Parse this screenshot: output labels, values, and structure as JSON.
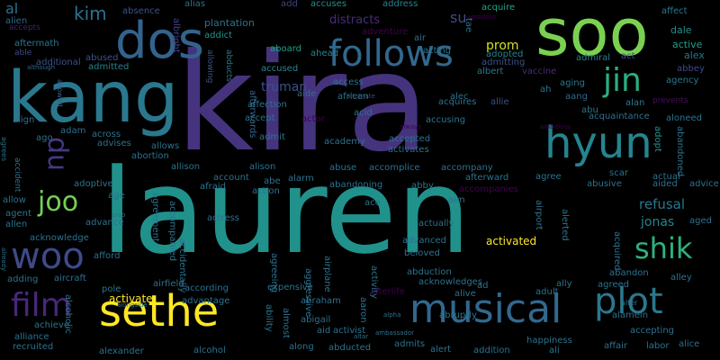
{
  "words": [
    {
      "text": "kira",
      "color": "#46337e"
    },
    {
      "text": "lauren",
      "color": "#21918c"
    },
    {
      "text": "kang",
      "color": "#2a788e"
    },
    {
      "text": "soo",
      "color": "#7ad151"
    },
    {
      "text": "dos",
      "color": "#33638d"
    },
    {
      "text": "sethe",
      "color": "#fde725"
    },
    {
      "text": "musical",
      "color": "#31688e"
    },
    {
      "text": "hyun",
      "color": "#25858e"
    },
    {
      "text": "plot",
      "color": "#2a788e"
    },
    {
      "text": "follows",
      "color": "#31688e"
    },
    {
      "text": "woo",
      "color": "#3e4a89"
    },
    {
      "text": "film",
      "color": "#482878"
    },
    {
      "text": "jin",
      "color": "#29af7f"
    },
    {
      "text": "shik",
      "color": "#2db27d"
    },
    {
      "text": "joo",
      "color": "#75d054"
    },
    {
      "text": "du",
      "color": "#443983"
    },
    {
      "text": "kim",
      "color": "#2c728e"
    },
    {
      "text": "su",
      "color": "#3e4a89"
    },
    {
      "text": "prom",
      "color": "#d2e21b"
    },
    {
      "text": "distracts",
      "color": "#472c7a"
    },
    {
      "text": "refusal",
      "color": "#2a788e"
    },
    {
      "text": "jonas",
      "color": "#25848e"
    },
    {
      "text": "truman",
      "color": "#3b528b"
    },
    {
      "text": "al",
      "color": "#2c728e"
    },
    {
      "text": "alien",
      "color": "#31688e"
    },
    {
      "text": "accepts",
      "color": "#482071"
    },
    {
      "text": "aftermath",
      "color": "#2a788e"
    },
    {
      "text": "able",
      "color": "#3e4a89"
    },
    {
      "text": "additional",
      "color": "#3b528b"
    },
    {
      "text": "absence",
      "color": "#3b528b"
    },
    {
      "text": "alias",
      "color": "#2c728e"
    },
    {
      "text": "afterwards",
      "color": "#33638d"
    },
    {
      "text": "add",
      "color": "#414487"
    },
    {
      "text": "accuses",
      "color": "#21918c"
    },
    {
      "text": "address",
      "color": "#26828e"
    },
    {
      "text": "acquire",
      "color": "#20a386"
    },
    {
      "text": "affect",
      "color": "#287c8e"
    },
    {
      "text": "ambition",
      "color": "#440154"
    },
    {
      "text": "dale",
      "color": "#21918c"
    },
    {
      "text": "active",
      "color": "#1f9e89"
    },
    {
      "text": "alex",
      "color": "#2c728e"
    },
    {
      "text": "abbey",
      "color": "#3e4a89"
    },
    {
      "text": "agency",
      "color": "#2a788e"
    },
    {
      "text": "plantation",
      "color": "#2c728e"
    },
    {
      "text": "addict",
      "color": "#21918c"
    },
    {
      "text": "abused",
      "color": "#3b528b"
    },
    {
      "text": "albright",
      "color": "#404387"
    },
    {
      "text": "admitted",
      "color": "#26828e"
    },
    {
      "text": "allowed",
      "color": "#33638d"
    },
    {
      "text": "although",
      "color": "#31688e"
    },
    {
      "text": "allowing",
      "color": "#3b528b"
    },
    {
      "text": "abducts",
      "color": "#2a788e"
    },
    {
      "text": "aboard",
      "color": "#1fa187"
    },
    {
      "text": "accused",
      "color": "#25858e"
    },
    {
      "text": "adventure",
      "color": "#440154"
    },
    {
      "text": "ahead",
      "color": "#24878e"
    },
    {
      "text": "air",
      "color": "#2c728e"
    },
    {
      "text": "acting",
      "color": "#2a788e"
    },
    {
      "text": "adopted",
      "color": "#25858e"
    },
    {
      "text": "tae",
      "color": "#2c728e"
    },
    {
      "text": "admitting",
      "color": "#3b528b"
    },
    {
      "text": "admiral",
      "color": "#26828e"
    },
    {
      "text": "act",
      "color": "#3b528b"
    },
    {
      "text": "vaccine",
      "color": "#472c7a"
    },
    {
      "text": "albert",
      "color": "#2a788e"
    },
    {
      "text": "aging",
      "color": "#2a788e"
    },
    {
      "text": "ah",
      "color": "#2c728e"
    },
    {
      "text": "aang",
      "color": "#31688e"
    },
    {
      "text": "alan",
      "color": "#2a788e"
    },
    {
      "text": "abu",
      "color": "#2c728e"
    },
    {
      "text": "prevents",
      "color": "#471063"
    },
    {
      "text": "acquaintance",
      "color": "#2c728e"
    },
    {
      "text": "aloneed",
      "color": "#2c728e"
    },
    {
      "text": "adopt",
      "color": "#21918c"
    },
    {
      "text": "abandoned",
      "color": "#2c728e"
    },
    {
      "text": "ambitious",
      "color": "#440154"
    },
    {
      "text": "aide",
      "color": "#2c728e"
    },
    {
      "text": "alternate",
      "color": "#404387"
    },
    {
      "text": "alec",
      "color": "#2c728e"
    },
    {
      "text": "allie",
      "color": "#3b528b"
    },
    {
      "text": "access",
      "color": "#2c728e"
    },
    {
      "text": "african",
      "color": "#2c728e"
    },
    {
      "text": "affection",
      "color": "#2c728e"
    },
    {
      "text": "accept",
      "color": "#2c728e"
    },
    {
      "text": "acid",
      "color": "#2c728e"
    },
    {
      "text": "actor",
      "color": "#440154"
    },
    {
      "text": "acquires",
      "color": "#2c728e"
    },
    {
      "text": "accusing",
      "color": "#2c728e"
    },
    {
      "text": "always",
      "color": "#440154"
    },
    {
      "text": "admit",
      "color": "#2c728e"
    },
    {
      "text": "academy",
      "color": "#2c728e"
    },
    {
      "text": "accepted",
      "color": "#2c728e"
    },
    {
      "text": "activates",
      "color": "#2c728e"
    },
    {
      "text": "accompany",
      "color": "#2c728e"
    },
    {
      "text": "align",
      "color": "#2c728e"
    },
    {
      "text": "ago",
      "color": "#2c728e"
    },
    {
      "text": "adam",
      "color": "#2c728e"
    },
    {
      "text": "across",
      "color": "#2c728e"
    },
    {
      "text": "advises",
      "color": "#2c728e"
    },
    {
      "text": "allows",
      "color": "#2c728e"
    },
    {
      "text": "abortion",
      "color": "#2c728e"
    },
    {
      "text": "agrees",
      "color": "#2c728e"
    },
    {
      "text": "accident",
      "color": "#2c728e"
    },
    {
      "text": "adoptive",
      "color": "#2c728e"
    },
    {
      "text": "allison",
      "color": "#2c728e"
    },
    {
      "text": "alison",
      "color": "#2c728e"
    },
    {
      "text": "abuse",
      "color": "#2c728e"
    },
    {
      "text": "accomplice",
      "color": "#2c728e"
    },
    {
      "text": "afterward",
      "color": "#2c728e"
    },
    {
      "text": "agree",
      "color": "#2c728e"
    },
    {
      "text": "actual",
      "color": "#2c728e"
    },
    {
      "text": "scar",
      "color": "#2c728e"
    },
    {
      "text": "aided",
      "color": "#2c728e"
    },
    {
      "text": "advice",
      "color": "#2c728e"
    },
    {
      "text": "abusive",
      "color": "#2c728e"
    },
    {
      "text": "account",
      "color": "#2c728e"
    },
    {
      "text": "abe",
      "color": "#2c728e"
    },
    {
      "text": "alarm",
      "color": "#2c728e"
    },
    {
      "text": "abandoning",
      "color": "#2c728e"
    },
    {
      "text": "abby",
      "color": "#2c728e"
    },
    {
      "text": "accompanies",
      "color": "#440154"
    },
    {
      "text": "age",
      "color": "#2c728e"
    },
    {
      "text": "afraid",
      "color": "#2c728e"
    },
    {
      "text": "action",
      "color": "#2c728e"
    },
    {
      "text": "agreement",
      "color": "#2c728e"
    },
    {
      "text": "accompanied",
      "color": "#2c728e"
    },
    {
      "text": "allow",
      "color": "#2c728e"
    },
    {
      "text": "allen",
      "color": "#2c728e"
    },
    {
      "text": "agent",
      "color": "#2c728e"
    },
    {
      "text": "also",
      "color": "#2c728e"
    },
    {
      "text": "advance",
      "color": "#2c728e"
    },
    {
      "text": "actress",
      "color": "#2c728e"
    },
    {
      "text": "ace",
      "color": "#2c728e"
    },
    {
      "text": "aim",
      "color": "#2c728e"
    },
    {
      "text": "actually",
      "color": "#2c728e"
    },
    {
      "text": "airport",
      "color": "#2c728e"
    },
    {
      "text": "alerted",
      "color": "#2c728e"
    },
    {
      "text": "aged",
      "color": "#2c728e"
    },
    {
      "text": "acknowledge",
      "color": "#2c728e"
    },
    {
      "text": "already",
      "color": "#2c728e"
    },
    {
      "text": "afford",
      "color": "#2c728e"
    },
    {
      "text": "accidentally",
      "color": "#2c728e"
    },
    {
      "text": "agreeing",
      "color": "#2c728e"
    },
    {
      "text": "aggressive",
      "color": "#2c728e"
    },
    {
      "text": "airplane",
      "color": "#2c728e"
    },
    {
      "text": "advanced",
      "color": "#2c728e"
    },
    {
      "text": "beloved",
      "color": "#2c728e"
    },
    {
      "text": "activated",
      "color": "#fde725"
    },
    {
      "text": "acquired",
      "color": "#2c728e"
    },
    {
      "text": "abduction",
      "color": "#2c728e"
    },
    {
      "text": "abandon",
      "color": "#2c728e"
    },
    {
      "text": "alley",
      "color": "#2c728e"
    },
    {
      "text": "adding",
      "color": "#2c728e"
    },
    {
      "text": "aircraft",
      "color": "#2c728e"
    },
    {
      "text": "airfield",
      "color": "#2c728e"
    },
    {
      "text": "pole",
      "color": "#2c728e"
    },
    {
      "text": "activate",
      "color": "#fde725"
    },
    {
      "text": "according",
      "color": "#2c728e"
    },
    {
      "text": "activity",
      "color": "#2c728e"
    },
    {
      "text": "acknowledges",
      "color": "#2c728e"
    },
    {
      "text": "ad",
      "color": "#2c728e"
    },
    {
      "text": "afterlife",
      "color": "#440154"
    },
    {
      "text": "adult",
      "color": "#2c728e"
    },
    {
      "text": "ally",
      "color": "#2c728e"
    },
    {
      "text": "agreed",
      "color": "#2c728e"
    },
    {
      "text": "achieve",
      "color": "#2c728e"
    },
    {
      "text": "alcoholic",
      "color": "#2c728e"
    },
    {
      "text": "advantage",
      "color": "#2c728e"
    },
    {
      "text": "expensive",
      "color": "#2c728e"
    },
    {
      "text": "abraham",
      "color": "#2c728e"
    },
    {
      "text": "aaron",
      "color": "#2c728e"
    },
    {
      "text": "alive",
      "color": "#2c728e"
    },
    {
      "text": "alter",
      "color": "#2c728e"
    },
    {
      "text": "alongside",
      "color": "#2c728e"
    },
    {
      "text": "ability",
      "color": "#2c728e"
    },
    {
      "text": "almost",
      "color": "#2c728e"
    },
    {
      "text": "aid",
      "color": "#2c728e"
    },
    {
      "text": "abigail",
      "color": "#2c728e"
    },
    {
      "text": "activist",
      "color": "#2c728e"
    },
    {
      "text": "alpha",
      "color": "#2c728e"
    },
    {
      "text": "abruptly",
      "color": "#2c728e"
    },
    {
      "text": "alamein",
      "color": "#2c728e"
    },
    {
      "text": "accepting",
      "color": "#2c728e"
    },
    {
      "text": "alliance",
      "color": "#2c728e"
    },
    {
      "text": "recruited",
      "color": "#2c728e"
    },
    {
      "text": "alexander",
      "color": "#2c728e"
    },
    {
      "text": "alcohol",
      "color": "#2c728e"
    },
    {
      "text": "along",
      "color": "#2c728e"
    },
    {
      "text": "abducted",
      "color": "#2c728e"
    },
    {
      "text": "admits",
      "color": "#2c728e"
    },
    {
      "text": "alert",
      "color": "#2c728e"
    },
    {
      "text": "addition",
      "color": "#2c728e"
    },
    {
      "text": "ambassador",
      "color": "#2c728e"
    },
    {
      "text": "altar",
      "color": "#2c728e"
    },
    {
      "text": "ali",
      "color": "#2c728e"
    },
    {
      "text": "happiness",
      "color": "#2c728e"
    },
    {
      "text": "affair",
      "color": "#2c728e"
    },
    {
      "text": "labor",
      "color": "#2c728e"
    },
    {
      "text": "alice",
      "color": "#2c728e"
    }
  ]
}
